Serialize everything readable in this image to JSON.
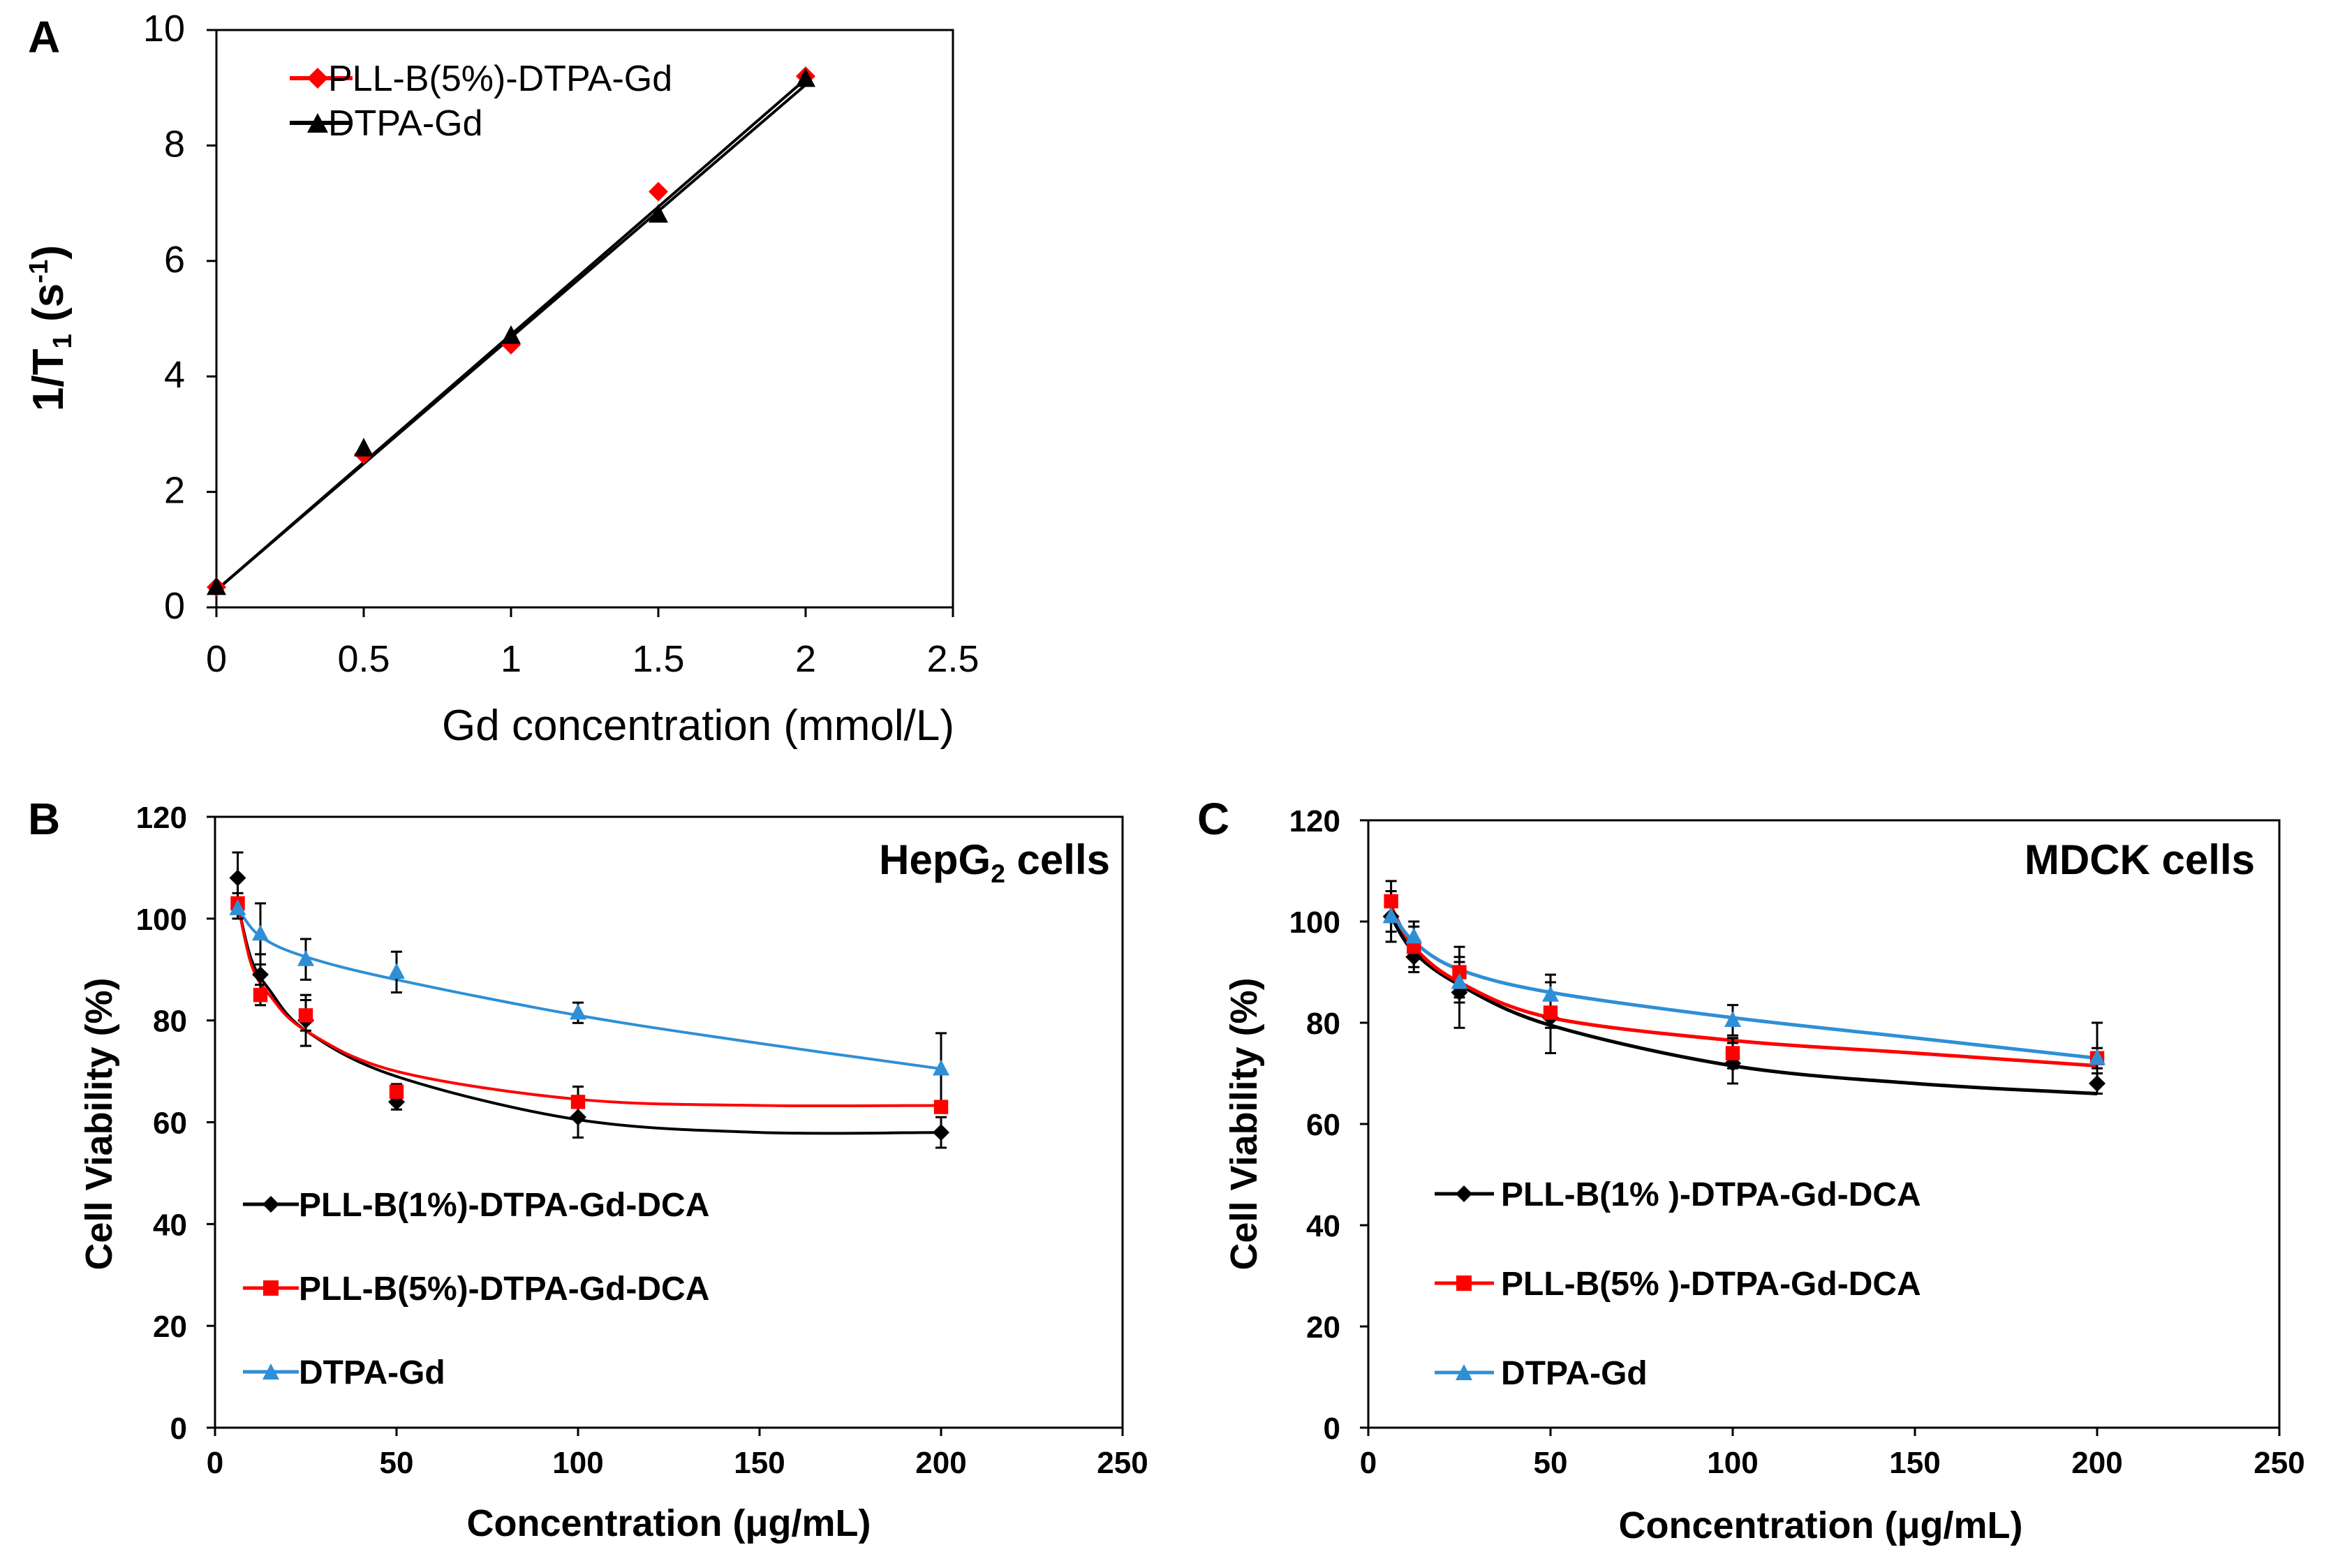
{
  "colors": {
    "black": "#000000",
    "red": "#ff0000",
    "blue": "#2f8fd6"
  },
  "panels": {
    "A": {
      "letter": "A"
    },
    "B": {
      "letter": "B",
      "cell_label": "HepG",
      "cell_label_sub": "2",
      "cell_label_suffix": " cells"
    },
    "C": {
      "letter": "C",
      "cell_label": "MDCK cells"
    }
  },
  "chart_data": [
    {
      "id": "A",
      "type": "scatter",
      "title": "",
      "xlabel": "Gd concentration (mmol/L)",
      "ylabel_main": "1/T",
      "ylabel_sub": "1",
      "ylabel_tail": " (s",
      "ylabel_sup": "-1",
      "ylabel_end": ")",
      "xlim": [
        0,
        2.5
      ],
      "ylim": [
        0,
        10
      ],
      "xticks": [
        "0",
        "0.5",
        "1",
        "1.5",
        "2",
        "2.5"
      ],
      "yticks": [
        "0",
        "2",
        "4",
        "6",
        "8",
        "10"
      ],
      "legend_position": "top-left",
      "grid": false,
      "series": [
        {
          "name": "PLL-B(5%)-DTPA-Gd",
          "color": "red",
          "marker": "diamond",
          "x": [
            0,
            0.5,
            1,
            1.5,
            2
          ],
          "y": [
            0.35,
            2.65,
            4.55,
            7.2,
            9.2
          ],
          "fit": [
            [
              0,
              0.3
            ],
            [
              2,
              9.15
            ]
          ]
        },
        {
          "name": "DTPA-Gd",
          "color": "black",
          "marker": "triangle",
          "x": [
            0,
            0.5,
            1,
            1.5,
            2
          ],
          "y": [
            0.35,
            2.75,
            4.7,
            6.8,
            9.15
          ],
          "fit": [
            [
              0,
              0.3
            ],
            [
              2,
              9.05
            ]
          ]
        }
      ]
    },
    {
      "id": "B",
      "type": "line",
      "xlabel": "Concentration (μg/mL)",
      "ylabel": "Cell Viability  (%)",
      "xlim": [
        0,
        250
      ],
      "ylim": [
        0,
        120
      ],
      "xticks": [
        "0",
        "50",
        "100",
        "150",
        "200",
        "250"
      ],
      "yticks": [
        "0",
        "20",
        "40",
        "60",
        "80",
        "100",
        "120"
      ],
      "legend_position": "bottom-left",
      "x": [
        6.25,
        12.5,
        25,
        50,
        100,
        200
      ],
      "series": [
        {
          "name": "PLL-B(1%)-DTPA-Gd-DCA",
          "color": "black",
          "marker": "diamond",
          "values": [
            108,
            89,
            80,
            64,
            61,
            58
          ],
          "errors": [
            5,
            4,
            5,
            1.5,
            4,
            3
          ],
          "curve": [
            [
              6.25,
              103
            ],
            [
              10,
              92
            ],
            [
              15,
              86
            ],
            [
              25,
              78
            ],
            [
              50,
              69
            ],
            [
              100,
              60.5
            ],
            [
              150,
              58
            ],
            [
              200,
              58
            ]
          ]
        },
        {
          "name": "PLL-B(5%)-DTPA-Gd-DCA",
          "color": "red",
          "marker": "square",
          "values": [
            103,
            85,
            81,
            66,
            64,
            63
          ],
          "errors": [
            2,
            2,
            3,
            1.5,
            3,
            1
          ],
          "curve": [
            [
              6.25,
              103
            ],
            [
              10,
              91
            ],
            [
              15,
              85
            ],
            [
              25,
              78
            ],
            [
              50,
              70
            ],
            [
              100,
              64.5
            ],
            [
              150,
              63.3
            ],
            [
              200,
              63.3
            ]
          ]
        },
        {
          "name": "DTPA-Gd",
          "color": "blue",
          "marker": "triangle",
          "values": [
            102,
            97,
            92,
            89.5,
            81.5,
            70.5
          ],
          "errors": [
            2,
            6,
            4,
            4,
            2,
            7
          ],
          "curve": [
            [
              6.25,
              102
            ],
            [
              12.5,
              96.5
            ],
            [
              25,
              92.5
            ],
            [
              50,
              88
            ],
            [
              100,
              81
            ],
            [
              150,
              75.5
            ],
            [
              200,
              70.5
            ]
          ]
        }
      ]
    },
    {
      "id": "C",
      "type": "line",
      "xlabel": "Concentration (μg/mL)",
      "ylabel": "Cell Viability (%)",
      "xlim": [
        0,
        250
      ],
      "ylim": [
        0,
        120
      ],
      "xticks": [
        "0",
        "50",
        "100",
        "150",
        "200",
        "250"
      ],
      "yticks": [
        "0",
        "20",
        "40",
        "60",
        "80",
        "100",
        "120"
      ],
      "legend_position": "bottom-left",
      "x": [
        6.25,
        12.5,
        25,
        50,
        100,
        200
      ],
      "series": [
        {
          "name": "PLL-B(1% )-DTPA-Gd-DCA",
          "color": "black",
          "marker": "diamond",
          "values": [
            101,
            93,
            86,
            81,
            72,
            68
          ],
          "errors": [
            5,
            3,
            7,
            7,
            4,
            2
          ],
          "curve": [
            [
              6.25,
              101
            ],
            [
              12.5,
              94
            ],
            [
              25,
              87.5
            ],
            [
              50,
              79.5
            ],
            [
              100,
              71.5
            ],
            [
              150,
              68
            ],
            [
              200,
              66
            ]
          ]
        },
        {
          "name": "PLL-B(5% )-DTPA-Gd-DCA",
          "color": "red",
          "marker": "square",
          "values": [
            104,
            95,
            90,
            82,
            74,
            73
          ],
          "errors": [
            4,
            4,
            5,
            3,
            3,
            7
          ],
          "curve": [
            [
              6.25,
              103
            ],
            [
              12.5,
              95
            ],
            [
              25,
              88
            ],
            [
              50,
              81
            ],
            [
              100,
              76.5
            ],
            [
              150,
              74
            ],
            [
              200,
              71.5
            ]
          ]
        },
        {
          "name": "DTPA-Gd",
          "color": "blue",
          "marker": "triangle",
          "values": [
            101,
            97,
            88,
            85.5,
            80.5,
            73
          ],
          "errors": [
            3,
            3,
            4,
            4,
            3,
            2
          ],
          "curve": [
            [
              6.25,
              102
            ],
            [
              12.5,
              96
            ],
            [
              25,
              90.5
            ],
            [
              50,
              86
            ],
            [
              100,
              81
            ],
            [
              150,
              77
            ],
            [
              200,
              73
            ]
          ]
        }
      ]
    }
  ]
}
